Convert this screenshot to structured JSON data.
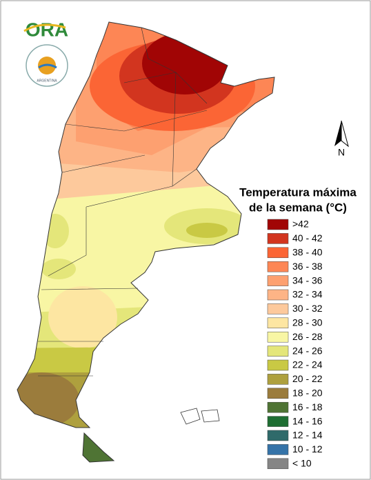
{
  "logo": {
    "text": "ORA",
    "emblem": "ARGENTINA"
  },
  "north": "N",
  "legend": {
    "title": [
      "Temperatura máxima",
      "de la semana (°C)"
    ],
    "items": [
      {
        "label": ">42",
        "color": "#a10505"
      },
      {
        "label": "40 - 42",
        "color": "#d2351f"
      },
      {
        "label": "38 - 40",
        "color": "#fb6535"
      },
      {
        "label": "36 - 38",
        "color": "#fd8655"
      },
      {
        "label": "34 - 36",
        "color": "#fda070"
      },
      {
        "label": "32 - 34",
        "color": "#fdb486"
      },
      {
        "label": "30 - 32",
        "color": "#fdc99c"
      },
      {
        "label": "28 - 30",
        "color": "#fde6a2"
      },
      {
        "label": "26 - 28",
        "color": "#f8f6a4"
      },
      {
        "label": "24 - 26",
        "color": "#e4e67a"
      },
      {
        "label": "22 - 24",
        "color": "#c9c944"
      },
      {
        "label": "20 - 22",
        "color": "#aea03e"
      },
      {
        "label": "18 - 20",
        "color": "#9b7c3c"
      },
      {
        "label": "16 - 18",
        "color": "#4f7434"
      },
      {
        "label": "14 - 16",
        "color": "#1e6e32"
      },
      {
        "label": "12 - 14",
        "color": "#2f6a6a"
      },
      {
        "label": "10 - 12",
        "color": "#3573a8"
      },
      {
        "label": "< 10",
        "color": "#858585"
      }
    ]
  }
}
